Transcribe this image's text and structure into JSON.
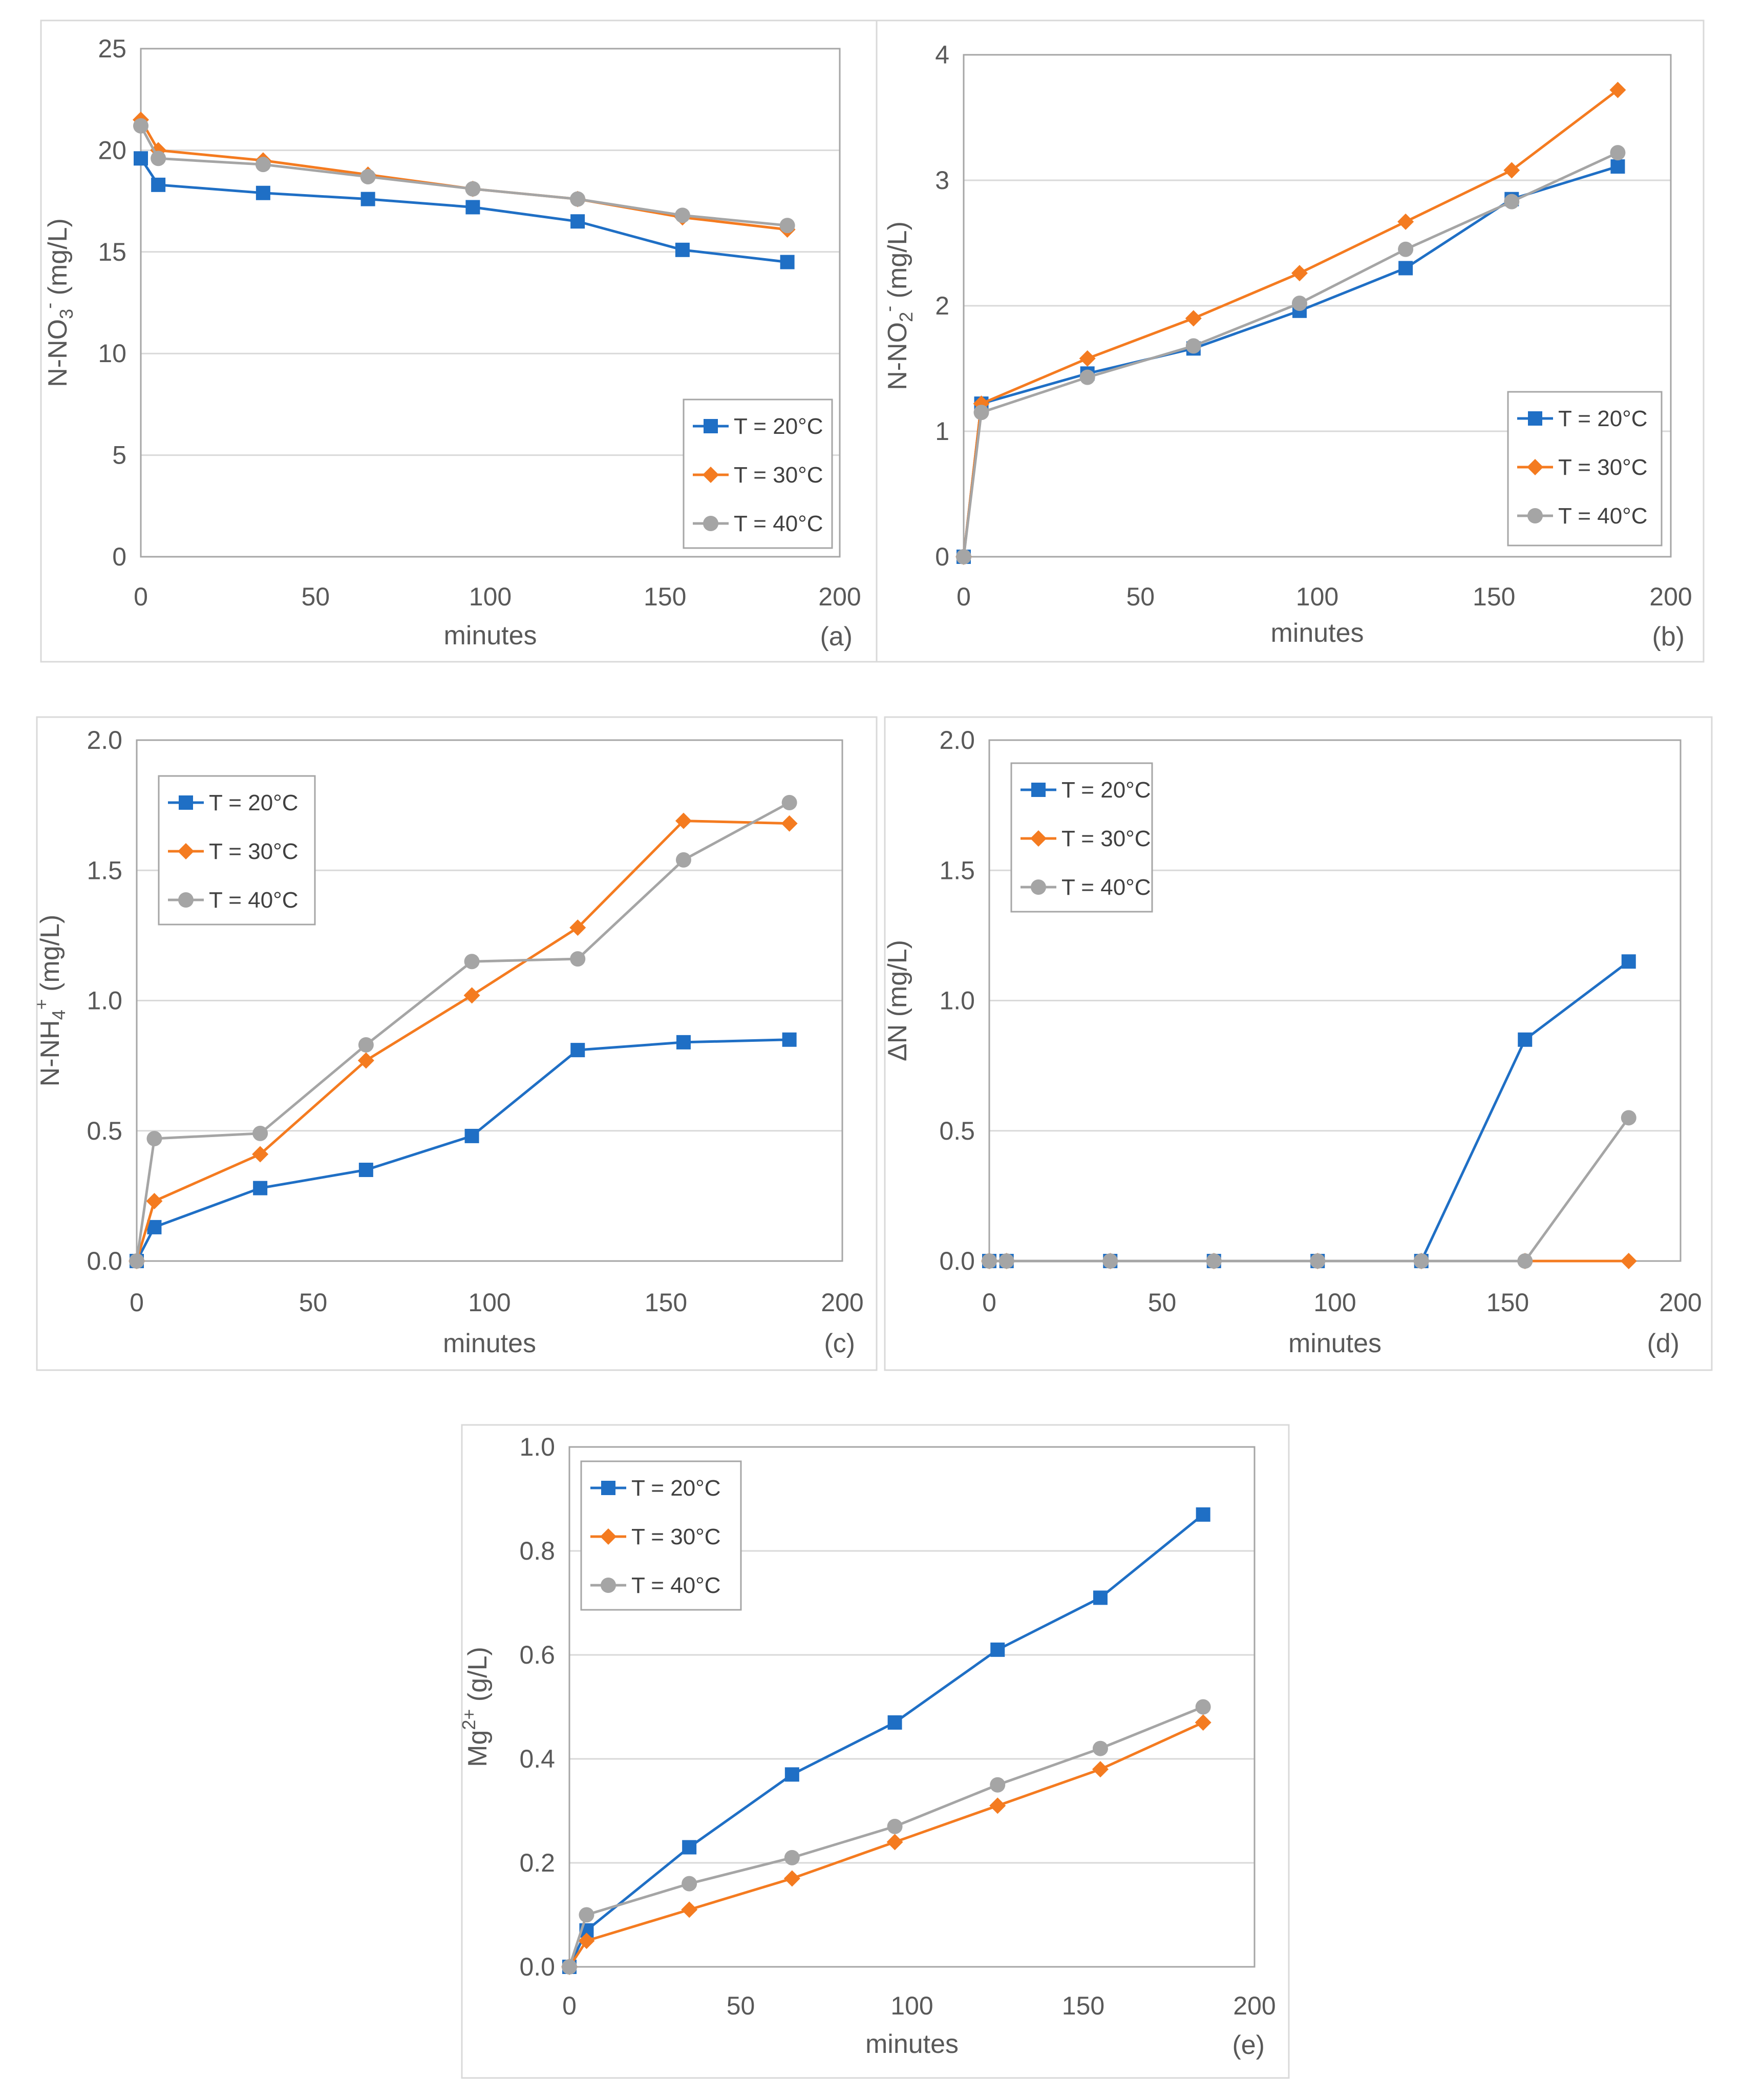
{
  "colors": {
    "T20": "#1f6fc5",
    "T30": "#f47b20",
    "T40": "#a5a5a5"
  },
  "chart_data": [
    {
      "type": "line",
      "panel": "(a)",
      "xlabel": "minutes",
      "ylabel": "N-NO3- (mg/L)",
      "xlim": [
        0,
        200
      ],
      "ylim": [
        0,
        25
      ],
      "xticks": [
        0,
        50,
        100,
        150,
        200
      ],
      "yticks": [
        0,
        5,
        10,
        15,
        20,
        25
      ],
      "yticklabels": [
        "0",
        "5",
        "10",
        "15",
        "20",
        "25"
      ],
      "legend": "bottom-right",
      "series": [
        {
          "name": "T = 20°C",
          "marker": "square",
          "x": [
            0,
            5,
            35,
            65,
            95,
            125,
            155,
            185
          ],
          "y": [
            19.6,
            18.3,
            17.9,
            17.6,
            17.2,
            16.5,
            15.1,
            14.5
          ]
        },
        {
          "name": "T = 30°C",
          "marker": "diamond",
          "x": [
            0,
            5,
            35,
            65,
            95,
            125,
            155,
            185
          ],
          "y": [
            21.5,
            20.0,
            19.5,
            18.8,
            18.1,
            17.6,
            16.7,
            16.1
          ]
        },
        {
          "name": "T = 40°C",
          "marker": "circle",
          "x": [
            0,
            5,
            35,
            65,
            95,
            125,
            155,
            185
          ],
          "y": [
            21.2,
            19.6,
            19.3,
            18.7,
            18.1,
            17.6,
            16.8,
            16.3
          ]
        }
      ]
    },
    {
      "type": "line",
      "panel": "(b)",
      "xlabel": "minutes",
      "ylabel": "N-NO2- (mg/L)",
      "xlim": [
        0,
        200
      ],
      "ylim": [
        0,
        4
      ],
      "xticks": [
        0,
        50,
        100,
        150,
        200
      ],
      "yticks": [
        0,
        1,
        2,
        3,
        4
      ],
      "yticklabels": [
        "0",
        "1",
        "2",
        "3",
        "4"
      ],
      "legend": "bottom-right",
      "series": [
        {
          "name": "T = 20°C",
          "marker": "square",
          "x": [
            0,
            5,
            35,
            65,
            95,
            125,
            155,
            185
          ],
          "y": [
            0,
            1.22,
            1.46,
            1.66,
            1.96,
            2.3,
            2.85,
            3.11
          ]
        },
        {
          "name": "T = 30°C",
          "marker": "diamond",
          "x": [
            0,
            5,
            35,
            65,
            95,
            125,
            155,
            185
          ],
          "y": [
            0,
            1.22,
            1.58,
            1.9,
            2.26,
            2.67,
            3.08,
            3.72
          ]
        },
        {
          "name": "T = 40°C",
          "marker": "circle",
          "x": [
            0,
            5,
            35,
            65,
            95,
            125,
            155,
            185
          ],
          "y": [
            0,
            1.15,
            1.43,
            1.68,
            2.02,
            2.45,
            2.83,
            3.22
          ]
        }
      ]
    },
    {
      "type": "line",
      "panel": "(c)",
      "xlabel": "minutes",
      "ylabel": "N-NH4+ (mg/L)",
      "xlim": [
        0,
        200
      ],
      "ylim": [
        0,
        2
      ],
      "xticks": [
        0,
        50,
        100,
        150,
        200
      ],
      "yticks": [
        0,
        0.5,
        1.0,
        1.5,
        2.0
      ],
      "yticklabels": [
        "0.0",
        "0.5",
        "1.0",
        "1.5",
        "2.0"
      ],
      "legend": "top-left",
      "series": [
        {
          "name": "T = 20°C",
          "marker": "square",
          "x": [
            0,
            5,
            35,
            65,
            95,
            125,
            155,
            185
          ],
          "y": [
            0,
            0.13,
            0.28,
            0.35,
            0.48,
            0.81,
            0.84,
            0.85
          ]
        },
        {
          "name": "T = 30°C",
          "marker": "diamond",
          "x": [
            0,
            5,
            35,
            65,
            95,
            125,
            155,
            185
          ],
          "y": [
            0,
            0.23,
            0.41,
            0.77,
            1.02,
            1.28,
            1.69,
            1.68
          ]
        },
        {
          "name": "T = 40°C",
          "marker": "circle",
          "x": [
            0,
            5,
            35,
            65,
            95,
            125,
            155,
            185
          ],
          "y": [
            0,
            0.47,
            0.49,
            0.83,
            1.15,
            1.16,
            1.54,
            1.76
          ]
        }
      ]
    },
    {
      "type": "line",
      "panel": "(d)",
      "xlabel": "minutes",
      "ylabel": "ΔN (mg/L)",
      "xlim": [
        0,
        200
      ],
      "ylim": [
        0,
        2
      ],
      "xticks": [
        0,
        50,
        100,
        150,
        200
      ],
      "yticks": [
        0,
        0.5,
        1.0,
        1.5,
        2.0
      ],
      "yticklabels": [
        "0.0",
        "0.5",
        "1.0",
        "1.5",
        "2.0"
      ],
      "legend": "top-left",
      "series": [
        {
          "name": "T = 20°C",
          "marker": "square",
          "x": [
            0,
            5,
            35,
            65,
            95,
            125,
            155,
            185
          ],
          "y": [
            0,
            0,
            0,
            0,
            0,
            0,
            0.85,
            1.15
          ]
        },
        {
          "name": "T = 30°C",
          "marker": "diamond",
          "x": [
            0,
            5,
            35,
            65,
            95,
            125,
            155,
            185
          ],
          "y": [
            0,
            0,
            0,
            0,
            0,
            0,
            0,
            0
          ]
        },
        {
          "name": "T = 40°C",
          "marker": "circle",
          "x": [
            0,
            5,
            35,
            65,
            95,
            125,
            155,
            185
          ],
          "y": [
            0,
            0,
            0,
            0,
            0,
            0,
            0,
            0.55
          ]
        }
      ]
    },
    {
      "type": "line",
      "panel": "(e)",
      "xlabel": "minutes",
      "ylabel": "Mg2+ (g/L)",
      "xlim": [
        0,
        200
      ],
      "ylim": [
        0,
        1
      ],
      "xticks": [
        0,
        50,
        100,
        150,
        200
      ],
      "yticks": [
        0,
        0.2,
        0.4,
        0.6,
        0.8,
        1.0
      ],
      "yticklabels": [
        "0.0",
        "0.2",
        "0.4",
        "0.6",
        "0.8",
        "1.0"
      ],
      "legend": "top-left",
      "series": [
        {
          "name": "T = 20°C",
          "marker": "square",
          "x": [
            0,
            5,
            35,
            65,
            95,
            125,
            155,
            185
          ],
          "y": [
            0,
            0.07,
            0.23,
            0.37,
            0.47,
            0.61,
            0.71,
            0.87
          ]
        },
        {
          "name": "T = 30°C",
          "marker": "diamond",
          "x": [
            0,
            5,
            35,
            65,
            95,
            125,
            155,
            185
          ],
          "y": [
            0,
            0.05,
            0.11,
            0.17,
            0.24,
            0.31,
            0.38,
            0.47
          ]
        },
        {
          "name": "T = 40°C",
          "marker": "circle",
          "x": [
            0,
            5,
            35,
            65,
            95,
            125,
            155,
            185
          ],
          "y": [
            0,
            0.1,
            0.16,
            0.21,
            0.27,
            0.35,
            0.42,
            0.5
          ]
        }
      ]
    }
  ]
}
